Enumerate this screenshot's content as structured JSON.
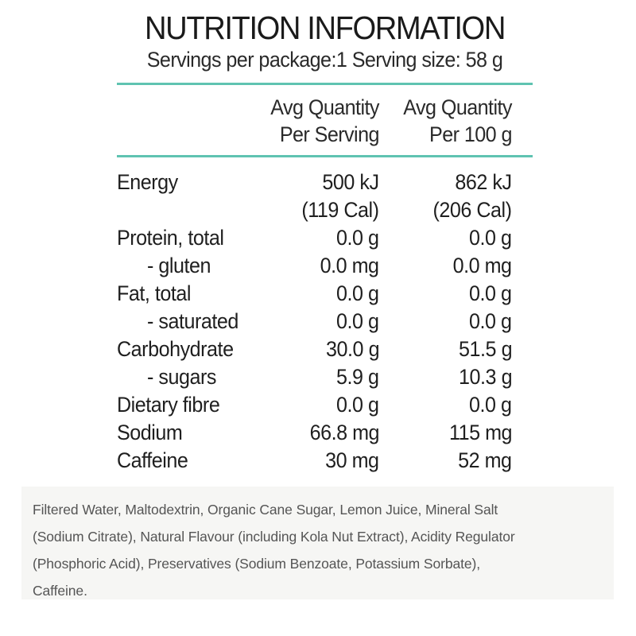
{
  "title": "NUTRITION INFORMATION",
  "serving_info": "Servings per package:1 Serving size: 58 g",
  "columns": {
    "per_serving": [
      "Avg Quantity",
      "Per Serving"
    ],
    "per_100g": [
      "Avg Quantity",
      "Per 100 g"
    ]
  },
  "accent_color": "#5fc3b1",
  "nutrients": [
    {
      "label": "Energy",
      "per_serving": [
        "500 kJ",
        "(119 Cal)"
      ],
      "per_100g": [
        "862 kJ",
        "(206 Cal)"
      ]
    },
    {
      "label": "Protein, total",
      "per_serving": [
        "0.0 g"
      ],
      "per_100g": [
        "0.0 g"
      ]
    },
    {
      "label": "- gluten",
      "per_serving": [
        "0.0 mg"
      ],
      "per_100g": [
        "0.0 mg"
      ]
    },
    {
      "label": "Fat, total",
      "per_serving": [
        "0.0 g"
      ],
      "per_100g": [
        "0.0 g"
      ]
    },
    {
      "label": "- saturated",
      "per_serving": [
        "0.0 g"
      ],
      "per_100g": [
        "0.0 g"
      ]
    },
    {
      "label": "Carbohydrate",
      "per_serving": [
        "30.0 g"
      ],
      "per_100g": [
        "51.5 g"
      ]
    },
    {
      "label": "- sugars",
      "per_serving": [
        "5.9 g"
      ],
      "per_100g": [
        "10.3 g"
      ]
    },
    {
      "label": "Dietary fibre",
      "per_serving": [
        "0.0 g"
      ],
      "per_100g": [
        "0.0 g"
      ]
    },
    {
      "label": "Sodium",
      "per_serving": [
        "66.8 mg"
      ],
      "per_100g": [
        "115 mg"
      ]
    },
    {
      "label": "Caffeine",
      "per_serving": [
        "30 mg"
      ],
      "per_100g": [
        "52 mg"
      ]
    }
  ],
  "ingredients_lines": [
    "Filtered Water, Maltodextrin, Organic Cane Sugar, Lemon Juice, Mineral Salt",
    "(Sodium Citrate), Natural Flavour (including Kola Nut Extract), Acidity Regulator",
    "(Phosphoric Acid), Preservatives (Sodium Benzoate, Potassium Sorbate),",
    "Caffeine."
  ]
}
